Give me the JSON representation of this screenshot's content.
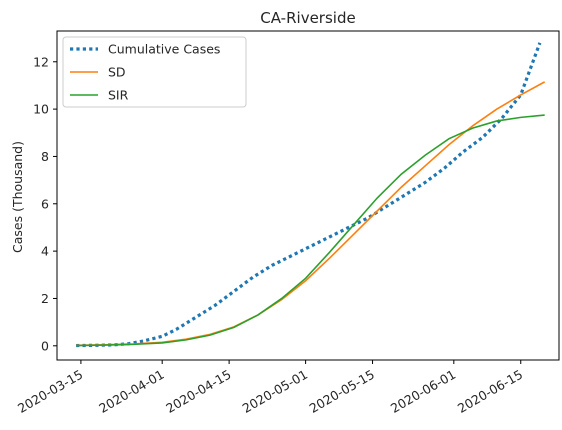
{
  "chart_data": {
    "type": "line",
    "title": "CA-Riverside",
    "xlabel": "",
    "ylabel": "Cases (Thousand)",
    "x_type": "date",
    "xlim": [
      "2020-03-10",
      "2020-06-23"
    ],
    "ylim": [
      -0.6,
      13.3
    ],
    "x_ticks": [
      "2020-03-15",
      "2020-04-01",
      "2020-04-15",
      "2020-05-01",
      "2020-05-15",
      "2020-06-01",
      "2020-06-15"
    ],
    "y_ticks": [
      0,
      2,
      4,
      6,
      8,
      10,
      12
    ],
    "grid": false,
    "legend_placement": "top-left",
    "series": [
      {
        "name": "Cumulative Cases",
        "color": "#1f77b4",
        "style": "dotted",
        "x": [
          "2020-03-14",
          "2020-03-18",
          "2020-03-22",
          "2020-03-25",
          "2020-03-28",
          "2020-04-01",
          "2020-04-04",
          "2020-04-08",
          "2020-04-12",
          "2020-04-16",
          "2020-04-20",
          "2020-04-24",
          "2020-04-28",
          "2020-05-02",
          "2020-05-06",
          "2020-05-10",
          "2020-05-14",
          "2020-05-18",
          "2020-05-22",
          "2020-05-26",
          "2020-05-30",
          "2020-06-03",
          "2020-06-07",
          "2020-06-11",
          "2020-06-15",
          "2020-06-19"
        ],
        "y": [
          0.01,
          0.02,
          0.04,
          0.09,
          0.2,
          0.4,
          0.7,
          1.2,
          1.7,
          2.3,
          2.9,
          3.4,
          3.8,
          4.2,
          4.6,
          5.0,
          5.4,
          5.9,
          6.4,
          6.9,
          7.5,
          8.2,
          8.8,
          9.6,
          10.6,
          12.8
        ]
      },
      {
        "name": "SD",
        "color": "#ff7f0e",
        "style": "solid",
        "x": [
          "2020-03-14",
          "2020-03-20",
          "2020-03-26",
          "2020-04-01",
          "2020-04-06",
          "2020-04-11",
          "2020-04-16",
          "2020-04-21",
          "2020-04-26",
          "2020-05-01",
          "2020-05-06",
          "2020-05-11",
          "2020-05-16",
          "2020-05-21",
          "2020-05-26",
          "2020-05-31",
          "2020-06-05",
          "2020-06-10",
          "2020-06-15",
          "2020-06-20"
        ],
        "y": [
          0.02,
          0.04,
          0.08,
          0.15,
          0.28,
          0.48,
          0.8,
          1.3,
          1.95,
          2.75,
          3.7,
          4.7,
          5.7,
          6.7,
          7.6,
          8.5,
          9.3,
          10.0,
          10.6,
          11.15
        ]
      },
      {
        "name": "SIR",
        "color": "#2ca02c",
        "style": "solid",
        "x": [
          "2020-03-14",
          "2020-03-20",
          "2020-03-26",
          "2020-04-01",
          "2020-04-06",
          "2020-04-11",
          "2020-04-16",
          "2020-04-21",
          "2020-04-26",
          "2020-05-01",
          "2020-05-06",
          "2020-05-11",
          "2020-05-16",
          "2020-05-21",
          "2020-05-26",
          "2020-05-31",
          "2020-06-05",
          "2020-06-10",
          "2020-06-15",
          "2020-06-20"
        ],
        "y": [
          0.01,
          0.03,
          0.06,
          0.12,
          0.25,
          0.45,
          0.78,
          1.3,
          2.0,
          2.85,
          3.95,
          5.1,
          6.25,
          7.25,
          8.05,
          8.75,
          9.2,
          9.5,
          9.65,
          9.75
        ]
      }
    ]
  }
}
